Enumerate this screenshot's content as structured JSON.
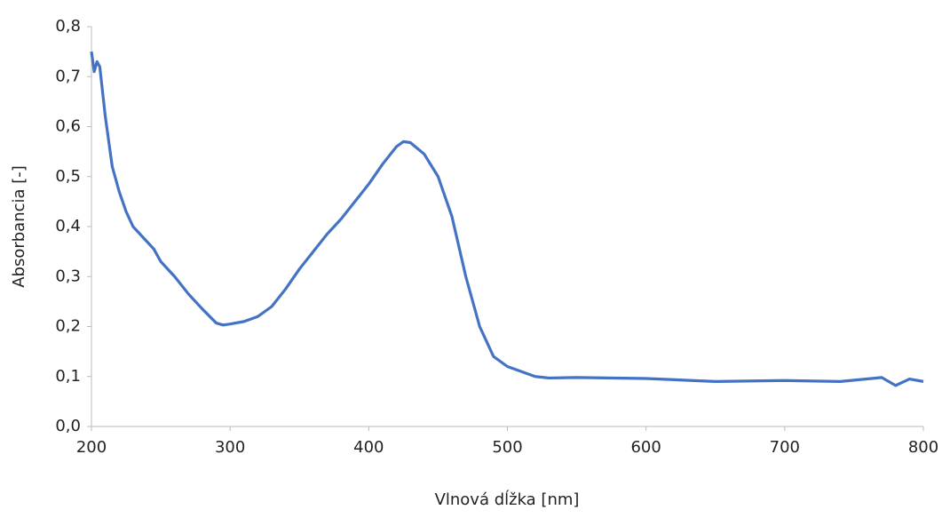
{
  "chart_data": {
    "type": "line",
    "x_label": "Vlnová dĺžka [nm]",
    "y_label": "Absorbancia [-]",
    "x": [
      200,
      202,
      204,
      206,
      210,
      215,
      220,
      225,
      230,
      240,
      245,
      250,
      260,
      270,
      280,
      290,
      295,
      300,
      310,
      320,
      330,
      340,
      350,
      360,
      370,
      380,
      390,
      400,
      410,
      420,
      425,
      430,
      440,
      450,
      460,
      470,
      480,
      490,
      500,
      510,
      520,
      530,
      550,
      600,
      650,
      700,
      740,
      770,
      780,
      790,
      800
    ],
    "series": [
      {
        "color": "#4472c4",
        "values": [
          0.75,
          0.71,
          0.73,
          0.72,
          0.62,
          0.52,
          0.47,
          0.43,
          0.4,
          0.37,
          0.355,
          0.33,
          0.3,
          0.265,
          0.235,
          0.207,
          0.203,
          0.205,
          0.21,
          0.22,
          0.24,
          0.275,
          0.315,
          0.35,
          0.385,
          0.415,
          0.45,
          0.485,
          0.525,
          0.56,
          0.57,
          0.568,
          0.545,
          0.5,
          0.42,
          0.3,
          0.2,
          0.14,
          0.12,
          0.11,
          0.1,
          0.097,
          0.098,
          0.096,
          0.09,
          0.092,
          0.09,
          0.098,
          0.082,
          0.095,
          0.09
        ]
      }
    ],
    "xlim": [
      200,
      800
    ],
    "xticks": [
      200,
      300,
      400,
      500,
      600,
      700,
      800
    ],
    "ylim": [
      0,
      0.8
    ],
    "yticks": [
      {
        "value": 0,
        "label": "0,0"
      },
      {
        "value": 0.1,
        "label": "0,1"
      },
      {
        "value": 0.2,
        "label": "0,2"
      },
      {
        "value": 0.3,
        "label": "0,3"
      },
      {
        "value": 0.4,
        "label": "0,4"
      },
      {
        "value": 0.5,
        "label": "0,5"
      },
      {
        "value": 0.6,
        "label": "0,6"
      },
      {
        "value": 0.7,
        "label": "0,7"
      },
      {
        "value": 0.8,
        "label": "0,8"
      }
    ],
    "grid": false
  }
}
